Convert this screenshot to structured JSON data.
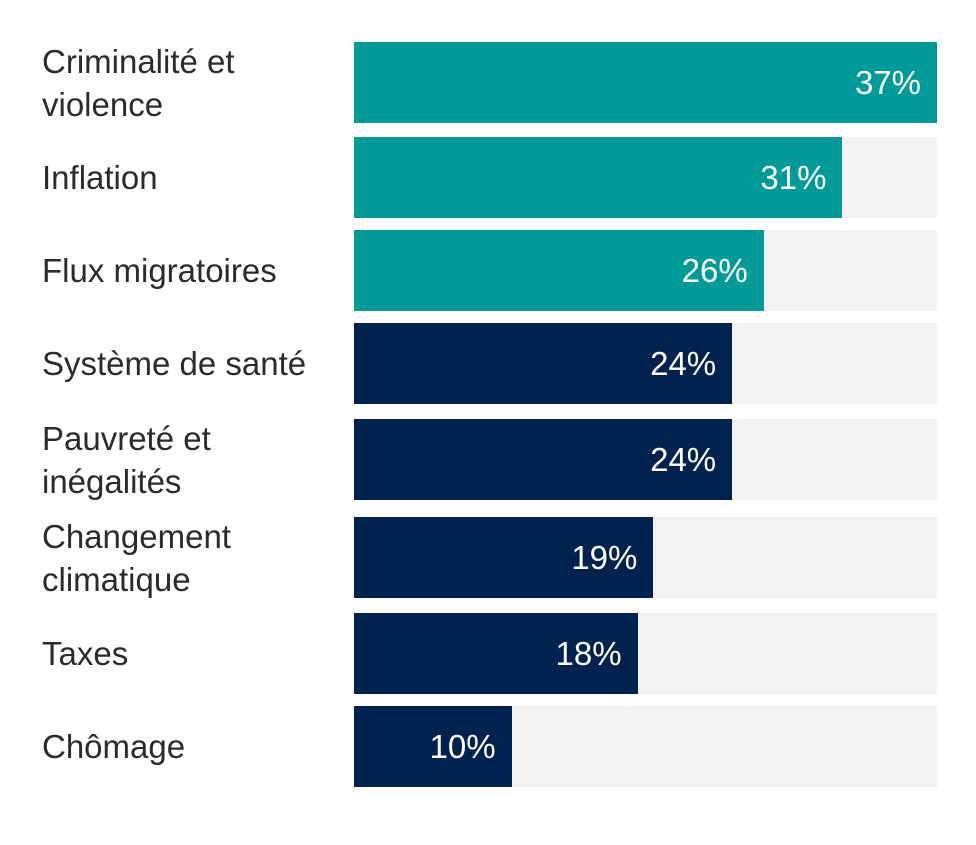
{
  "chart_data": {
    "type": "bar",
    "orientation": "horizontal",
    "categories": [
      "Criminalité et violence",
      "Inflation",
      "Flux migratoires",
      "Système de santé",
      "Pauvreté et inégalités",
      "Changement climatique",
      "Taxes",
      "Chômage"
    ],
    "category_lines": [
      [
        "Criminalité et",
        "violence"
      ],
      [
        "Inflation"
      ],
      [
        "Flux migratoires"
      ],
      [
        "Système de santé"
      ],
      [
        "Pauvreté et",
        "inégalités"
      ],
      [
        "Changement",
        "climatique"
      ],
      [
        "Taxes"
      ],
      [
        "Chômage"
      ]
    ],
    "values": [
      37,
      31,
      26,
      24,
      24,
      19,
      18,
      10
    ],
    "value_labels": [
      "37%",
      "31%",
      "26%",
      "24%",
      "24%",
      "19%",
      "18%",
      "10%"
    ],
    "unit": "%",
    "xlim": [
      0,
      37
    ],
    "highlight_count": 3,
    "colors": {
      "highlight": "#009b98",
      "default": "#00224f",
      "track": "#f2f2f2",
      "label_text": "#2b2b2b",
      "value_text": "#ffffff"
    },
    "title": "",
    "xlabel": "",
    "ylabel": ""
  }
}
